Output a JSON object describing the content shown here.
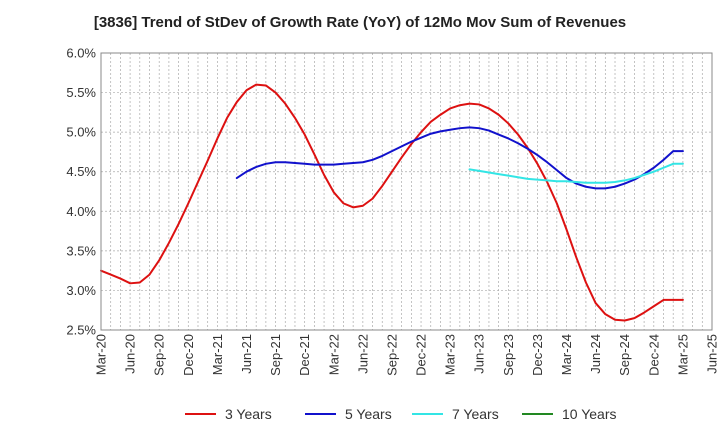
{
  "chart_data": {
    "type": "line",
    "title": "[3836]  Trend of StDev of Growth Rate (YoY) of 12Mo Mov Sum of Revenues",
    "xlabel": "",
    "ylabel": "",
    "ylim": [
      2.5,
      6.0
    ],
    "y_ticks": [
      2.5,
      3.0,
      3.5,
      4.0,
      4.5,
      5.0,
      5.5,
      6.0
    ],
    "y_tick_labels": [
      "2.5%",
      "3.0%",
      "3.5%",
      "4.0%",
      "4.5%",
      "5.0%",
      "5.5%",
      "6.0%"
    ],
    "x_tick_labels": [
      "Mar-20",
      "Jun-20",
      "Sep-20",
      "Dec-20",
      "Mar-21",
      "Jun-21",
      "Sep-21",
      "Dec-21",
      "Mar-22",
      "Jun-22",
      "Sep-22",
      "Dec-22",
      "Mar-23",
      "Jun-23",
      "Sep-23",
      "Dec-23",
      "Mar-24",
      "Jun-24",
      "Sep-24",
      "Dec-24",
      "Mar-25",
      "Jun-25"
    ],
    "x_domain": [
      0,
      63
    ],
    "grid": true,
    "legend_position": "bottom",
    "series": [
      {
        "name": "3 Years",
        "color": "#dd1111",
        "x": [
          0,
          1,
          2,
          3,
          4,
          5,
          6,
          7,
          8,
          9,
          10,
          11,
          12,
          13,
          14,
          15,
          16,
          17,
          18,
          19,
          20,
          21,
          22,
          23,
          24,
          25,
          26,
          27,
          28,
          29,
          30,
          31,
          32,
          33,
          34,
          35,
          36,
          37,
          38,
          39,
          40,
          41,
          42,
          43,
          44,
          45,
          46,
          47,
          48,
          49,
          50,
          51,
          52,
          53,
          54,
          55,
          56,
          57,
          58,
          59,
          60
        ],
        "values": [
          3.25,
          3.2,
          3.15,
          3.09,
          3.1,
          3.2,
          3.38,
          3.6,
          3.84,
          4.1,
          4.37,
          4.64,
          4.92,
          5.18,
          5.38,
          5.53,
          5.6,
          5.59,
          5.5,
          5.36,
          5.18,
          4.97,
          4.72,
          4.46,
          4.24,
          4.1,
          4.05,
          4.07,
          4.16,
          4.32,
          4.5,
          4.68,
          4.85,
          5.0,
          5.13,
          5.22,
          5.3,
          5.34,
          5.36,
          5.35,
          5.3,
          5.22,
          5.11,
          4.97,
          4.8,
          4.6,
          4.37,
          4.1,
          3.77,
          3.42,
          3.1,
          2.84,
          2.7,
          2.63,
          2.62,
          2.65,
          2.72,
          2.8,
          2.88,
          2.88,
          2.88
        ]
      },
      {
        "name": "5 Years",
        "color": "#1111cc",
        "x": [
          14,
          15,
          16,
          17,
          18,
          19,
          20,
          21,
          22,
          23,
          24,
          25,
          26,
          27,
          28,
          29,
          30,
          31,
          32,
          33,
          34,
          35,
          36,
          37,
          38,
          39,
          40,
          41,
          42,
          43,
          44,
          45,
          46,
          47,
          48,
          49,
          50,
          51,
          52,
          53,
          54,
          55,
          56,
          57,
          58,
          59,
          60
        ],
        "values": [
          4.42,
          4.5,
          4.56,
          4.6,
          4.62,
          4.62,
          4.61,
          4.6,
          4.59,
          4.59,
          4.59,
          4.6,
          4.61,
          4.62,
          4.65,
          4.7,
          4.76,
          4.82,
          4.88,
          4.93,
          4.98,
          5.01,
          5.03,
          5.05,
          5.06,
          5.05,
          5.02,
          4.97,
          4.92,
          4.86,
          4.79,
          4.71,
          4.62,
          4.52,
          4.42,
          4.35,
          4.31,
          4.29,
          4.29,
          4.31,
          4.35,
          4.4,
          4.47,
          4.55,
          4.65,
          4.76,
          4.76
        ]
      },
      {
        "name": "7 Years",
        "color": "#33e5e5",
        "x": [
          38,
          39,
          40,
          41,
          42,
          43,
          44,
          45,
          46,
          47,
          48,
          49,
          50,
          51,
          52,
          53,
          54,
          55,
          56,
          57,
          58,
          59,
          60
        ],
        "values": [
          4.53,
          4.51,
          4.49,
          4.47,
          4.45,
          4.43,
          4.41,
          4.4,
          4.39,
          4.38,
          4.38,
          4.37,
          4.36,
          4.36,
          4.36,
          4.37,
          4.39,
          4.42,
          4.46,
          4.5,
          4.55,
          4.6,
          4.6
        ]
      },
      {
        "name": "10 Years",
        "color": "#228822",
        "x": [],
        "values": []
      }
    ]
  }
}
